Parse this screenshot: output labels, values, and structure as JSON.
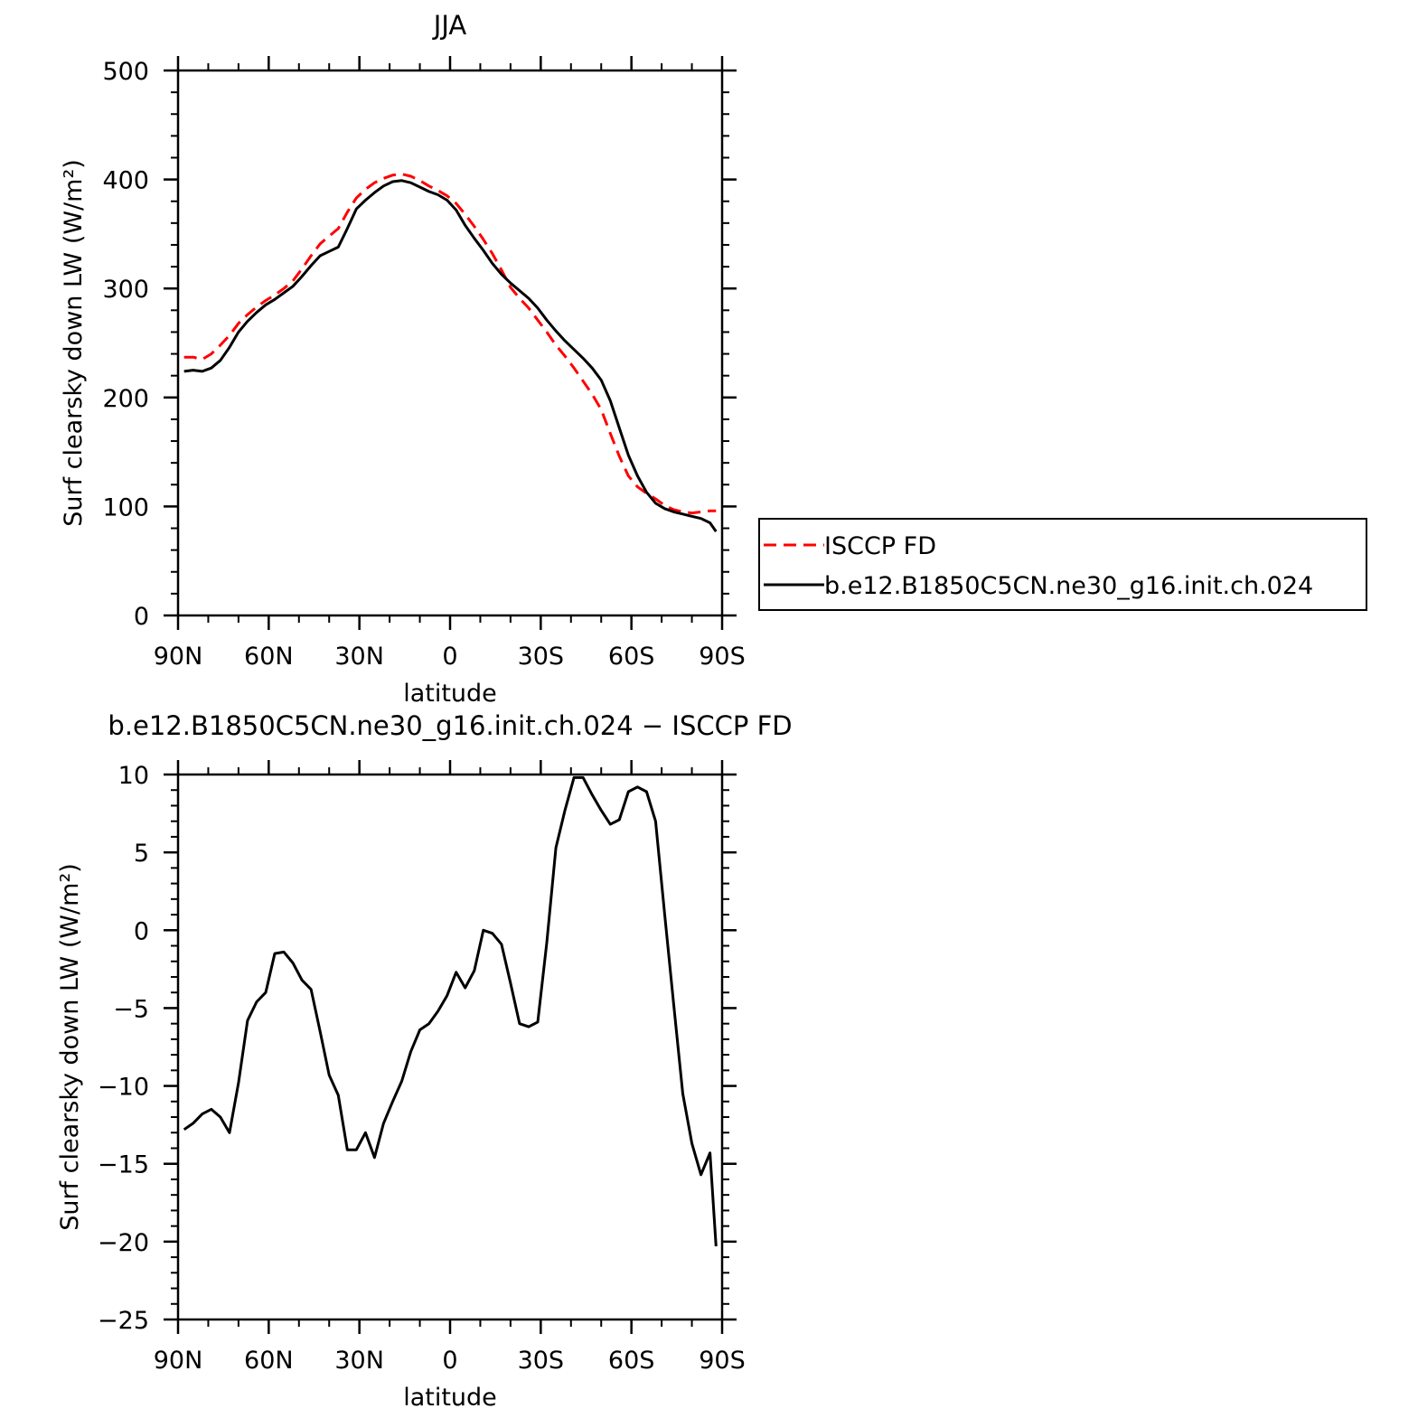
{
  "chart_data": [
    {
      "type": "line",
      "title": "JJA",
      "xlabel": "latitude",
      "ylabel": "Surf clearsky down LW (W/m²)",
      "xlim": [
        90,
        -90
      ],
      "ylim": [
        0,
        500
      ],
      "x_tick_labels": [
        "90N",
        "60N",
        "30N",
        "0",
        "30S",
        "60S",
        "90S"
      ],
      "x_tick_values": [
        90,
        60,
        30,
        0,
        -30,
        -60,
        -90
      ],
      "y_ticks": [
        0,
        100,
        200,
        300,
        400,
        500
      ],
      "legend_placement": "right",
      "series": [
        {
          "name": "ISCCP FD",
          "color": "#ff0000",
          "style": "dashed",
          "x": [
            88,
            85,
            82,
            79,
            76,
            73,
            70,
            67,
            64,
            61,
            58,
            55,
            52,
            49,
            46,
            43,
            40,
            37,
            34,
            31,
            28,
            25,
            22,
            19,
            16,
            13,
            10,
            7,
            4,
            1,
            -2,
            -5,
            -8,
            -11,
            -14,
            -17,
            -20,
            -23,
            -26,
            -29,
            -32,
            -35,
            -38,
            -41,
            -44,
            -47,
            -50,
            -53,
            -56,
            -59,
            -62,
            -65,
            -68,
            -71,
            -74,
            -77,
            -80,
            -83,
            -86,
            -88
          ],
          "y": [
            237,
            237,
            235,
            240,
            248,
            257,
            268,
            276,
            283,
            289,
            294,
            300,
            307,
            318,
            330,
            341,
            348,
            355,
            370,
            383,
            391,
            397,
            401,
            404,
            405,
            403,
            399,
            394,
            390,
            385,
            378,
            368,
            357,
            345,
            332,
            317,
            301,
            291,
            282,
            271,
            260,
            248,
            238,
            227,
            215,
            203,
            189,
            167,
            146,
            128,
            118,
            112,
            107,
            101,
            97,
            95,
            94,
            95,
            96,
            96
          ]
        },
        {
          "name": "b.e12.B1850C5CN.ne30_g16.init.ch.024",
          "color": "#000000",
          "style": "solid",
          "x": [
            88,
            85,
            82,
            79,
            76,
            73,
            70,
            67,
            64,
            61,
            58,
            55,
            52,
            49,
            46,
            43,
            40,
            37,
            34,
            31,
            28,
            25,
            22,
            19,
            16,
            13,
            10,
            7,
            4,
            1,
            -2,
            -5,
            -8,
            -11,
            -14,
            -17,
            -20,
            -23,
            -26,
            -29,
            -32,
            -35,
            -38,
            -41,
            -44,
            -47,
            -50,
            -53,
            -56,
            -59,
            -62,
            -65,
            -68,
            -71,
            -74,
            -77,
            -80,
            -83,
            -86,
            -88
          ],
          "y": [
            224,
            225,
            224,
            227,
            234,
            246,
            260,
            270,
            278,
            285,
            290,
            296,
            302,
            311,
            321,
            330,
            334,
            338,
            355,
            373,
            381,
            388,
            394,
            398,
            399,
            397,
            393,
            389,
            386,
            381,
            372,
            358,
            346,
            335,
            323,
            313,
            305,
            298,
            291,
            282,
            271,
            261,
            252,
            244,
            236,
            227,
            216,
            197,
            172,
            147,
            128,
            113,
            103,
            98,
            95,
            93,
            91,
            89,
            85,
            77
          ]
        }
      ]
    },
    {
      "type": "line",
      "title": "b.e12.B1850C5CN.ne30_g16.init.ch.024 − ISCCP FD",
      "xlabel": "latitude",
      "ylabel": "Surf clearsky down LW (W/m²)",
      "xlim": [
        90,
        -90
      ],
      "ylim": [
        -25,
        10
      ],
      "x_tick_labels": [
        "90N",
        "60N",
        "30N",
        "0",
        "30S",
        "60S",
        "90S"
      ],
      "x_tick_values": [
        90,
        60,
        30,
        0,
        -30,
        -60,
        -90
      ],
      "y_ticks": [
        -25,
        -20,
        -15,
        -10,
        -5,
        0,
        5,
        10
      ],
      "series": [
        {
          "color": "#000000",
          "style": "solid",
          "x": [
            88,
            85,
            82,
            79,
            76,
            73,
            70,
            67,
            64,
            61,
            58,
            55,
            52,
            49,
            46,
            43,
            40,
            37,
            34,
            31,
            28,
            25,
            22,
            19,
            16,
            13,
            10,
            7,
            4,
            1,
            -2,
            -5,
            -8,
            -11,
            -14,
            -17,
            -20,
            -23,
            -26,
            -29,
            -32,
            -35,
            -38,
            -41,
            -44,
            -47,
            -50,
            -53,
            -56,
            -59,
            -62,
            -65,
            -68,
            -71,
            -74,
            -77,
            -80,
            -83,
            -86,
            -88
          ],
          "y": [
            -12.8,
            -12.4,
            -11.8,
            -11.5,
            -12.0,
            -13.0,
            -9.8,
            -5.8,
            -4.6,
            -4.0,
            -1.5,
            -1.4,
            -2.1,
            -3.2,
            -3.8,
            -6.5,
            -9.3,
            -10.6,
            -14.1,
            -14.1,
            -13.0,
            -14.6,
            -12.4,
            -11.0,
            -9.7,
            -7.8,
            -6.4,
            -6.0,
            -5.2,
            -4.2,
            -2.7,
            -3.7,
            -2.6,
            0.0,
            -0.2,
            -0.9,
            -3.4,
            -6.0,
            -6.2,
            -5.9,
            -0.8,
            5.3,
            7.7,
            9.8,
            9.8,
            8.7,
            7.7,
            6.8,
            7.1,
            8.9,
            9.2,
            8.9,
            7.0,
            1.0,
            -4.8,
            -10.5,
            -13.7,
            -15.7,
            -14.3,
            -20.3
          ]
        }
      ]
    }
  ]
}
